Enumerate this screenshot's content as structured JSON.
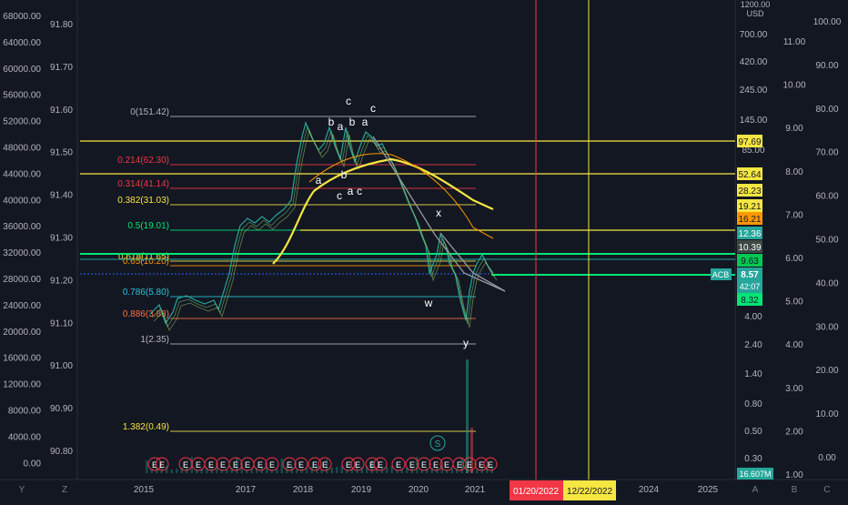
{
  "chart_data": {
    "type": "line",
    "symbol": "ACB",
    "currency": "USD",
    "price_axis_header": "1200.00",
    "last_price": "8.57",
    "countdown": "42:07",
    "volume_label": "16.607M",
    "x_ticks": [
      "2015",
      "2017",
      "2018",
      "2019",
      "2020",
      "2021",
      "2024",
      "2025"
    ],
    "date_markers": [
      {
        "label": "01/20/2022",
        "color": "#f23645"
      },
      {
        "label": "12/22/2022",
        "color": "#f5e642"
      }
    ],
    "left_axis_1_ticks": [
      "68000.00",
      "64000.00",
      "60000.00",
      "56000.00",
      "52000.00",
      "48000.00",
      "44000.00",
      "40000.00",
      "36000.00",
      "32000.00",
      "28000.00",
      "24000.00",
      "20000.00",
      "16000.00",
      "12000.00",
      "8000.00",
      "4000.00",
      "0.00"
    ],
    "left_axis_2_ticks": [
      "91.80",
      "91.70",
      "91.60",
      "91.50",
      "91.40",
      "91.30",
      "91.20",
      "91.10",
      "91.00",
      "90.90",
      "90.80"
    ],
    "main_price_ticks": [
      "700.00",
      "420.00",
      "245.00",
      "145.00",
      "85.00",
      "4.00",
      "2.40",
      "1.40",
      "0.80",
      "0.50",
      "0.30"
    ],
    "right_axis_2_ticks": [
      "11.00",
      "10.00",
      "9.00",
      "8.00",
      "7.00",
      "6.00",
      "5.00",
      "4.00",
      "3.00",
      "2.00",
      "1.00"
    ],
    "right_axis_3_ticks": [
      "100.00",
      "90.00",
      "80.00",
      "70.00",
      "60.00",
      "50.00",
      "40.00",
      "30.00",
      "20.00",
      "10.00",
      "0.00"
    ],
    "price_labels": [
      {
        "text": "97.69",
        "bg": "#f5e642",
        "fg": "#131722"
      },
      {
        "text": "52.64",
        "bg": "#f5e642",
        "fg": "#131722"
      },
      {
        "text": "28.23",
        "bg": "#f5e642",
        "fg": "#131722"
      },
      {
        "text": "19.21",
        "bg": "#f5e642",
        "fg": "#131722"
      },
      {
        "text": "16.21",
        "bg": "#ff9800",
        "fg": "#131722"
      },
      {
        "text": "12.36",
        "bg": "#26a69a",
        "fg": "#ffffff"
      },
      {
        "text": "10.39",
        "bg": "#3d4a46",
        "fg": "#ffffff"
      },
      {
        "text": "9.63",
        "bg": "#00c853",
        "fg": "#131722"
      },
      {
        "text": "8.32",
        "bg": "#00e676",
        "fg": "#131722"
      }
    ],
    "fib_levels": [
      {
        "label": "0(151.42)",
        "color": "#b2b5be"
      },
      {
        "label": "0.214(62.30)",
        "color": "#f23645"
      },
      {
        "label": "0.314(41.14)",
        "color": "#f23645"
      },
      {
        "label": "0.382(31.03)",
        "color": "#f5e642"
      },
      {
        "label": "0.5(19.01)",
        "color": "#00e676"
      },
      {
        "label": "0.618(11.65)",
        "color": "#f5e642"
      },
      {
        "label": "0.65(10.20)",
        "color": "#ff9800"
      },
      {
        "label": "0.786(5.80)",
        "color": "#26c6da"
      },
      {
        "label": "0.886(3.83)",
        "color": "#ff7043"
      },
      {
        "label": "1(2.35)",
        "color": "#b2b5be"
      },
      {
        "label": "1.382(0.49)",
        "color": "#f5e642"
      }
    ],
    "wave_labels": [
      "c",
      "b",
      "a",
      "b",
      "a",
      "c",
      "b",
      "a",
      "c",
      "a",
      "c",
      "x",
      "w",
      "y",
      "S"
    ],
    "earnings_marker": "E",
    "bottom_corner_labels": [
      "Y",
      "Z",
      "A",
      "B",
      "C"
    ]
  }
}
